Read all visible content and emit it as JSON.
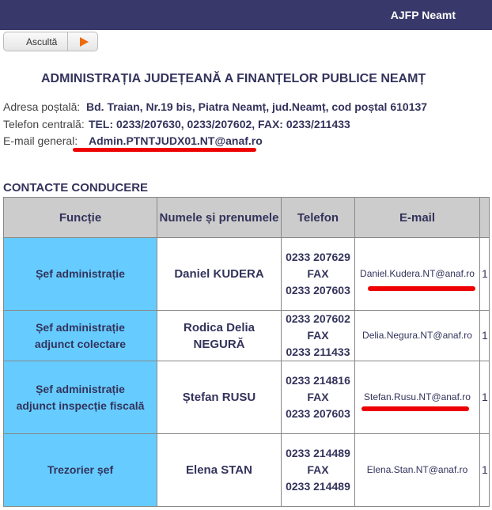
{
  "header": {
    "title": "AJFP Neamt"
  },
  "listen_button": {
    "label": "Ascultă"
  },
  "page_title": "ADMINISTRAȚIA JUDEȚEANĂ A FINANȚELOR PUBLICE NEAMȚ",
  "info": [
    {
      "label": "Adresa poștală:",
      "value": "Bd. Traian, Nr.19 bis, Piatra Neamț, jud.Neamț, cod poștal 610137"
    },
    {
      "label": "Telefon centrală:",
      "value": "TEL: 0233/207630, 0233/207602, FAX: 0233/211433"
    },
    {
      "label": "E-mail general:",
      "value": "Admin.PTNTJUDX01.NT@anaf.ro"
    }
  ],
  "section_title": "CONTACTE CONDUCERE",
  "table": {
    "headers": [
      "Funcție",
      "Numele și prenumele",
      "Telefon",
      "E-mail",
      ""
    ],
    "rows": [
      {
        "function": "Șef administrație",
        "name": "Daniel KUDERA",
        "phone": "0233 207629",
        "fax_label": "FAX",
        "fax": "0233 207603",
        "email": "Daniel.Kudera.NT@anaf.ro",
        "extra": "1"
      },
      {
        "function": "Șef administrație adjunct colectare",
        "name": "Rodica Delia NEGURĂ",
        "phone": "0233 207602",
        "fax_label": "FAX",
        "fax": "0233 211433",
        "email": "Delia.Negura.NT@anaf.ro",
        "extra": "1"
      },
      {
        "function": "Șef administrație adjunct inspecție fiscală",
        "name": "Ștefan RUSU",
        "phone": "0233 214816",
        "fax_label": "FAX",
        "fax": "0233 207603",
        "email": "Stefan.Rusu.NT@anaf.ro",
        "extra": "1"
      },
      {
        "function": "Trezorier șef",
        "name": "Elena STAN",
        "phone": "0233 214489",
        "fax_label": "FAX",
        "fax": "0233 214489",
        "email": "Elena.Stan.NT@anaf.ro",
        "extra": "1"
      }
    ]
  }
}
